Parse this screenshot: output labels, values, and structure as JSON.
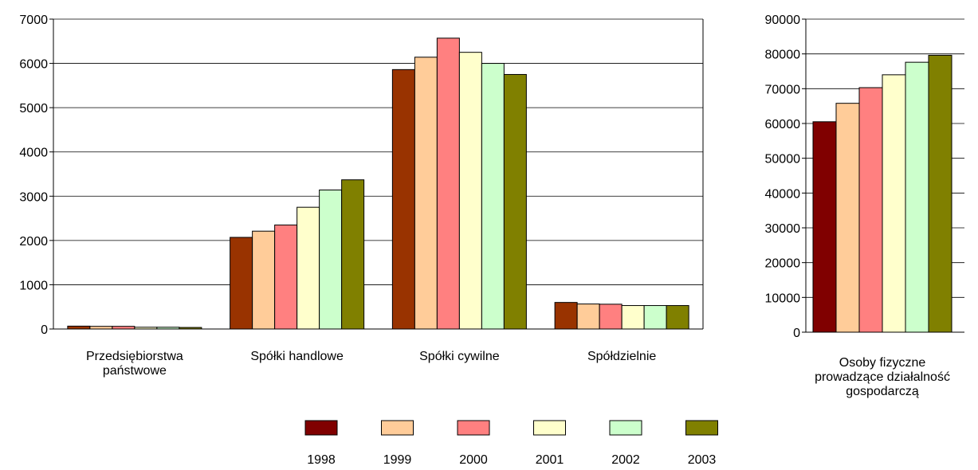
{
  "legend": {
    "placement": "bottom",
    "items": [
      {
        "label": "1998",
        "color": "#800000"
      },
      {
        "label": "1999",
        "color": "#FFCC99"
      },
      {
        "label": "2000",
        "color": "#FF8080"
      },
      {
        "label": "2001",
        "color": "#FFFFCC"
      },
      {
        "label": "2002",
        "color": "#CCFFCC"
      },
      {
        "label": "2003",
        "color": "#808000"
      }
    ]
  },
  "chart_data": [
    {
      "type": "bar",
      "grid": true,
      "ylim": [
        0,
        7000
      ],
      "yticks": [
        "0",
        "1000",
        "2000",
        "3000",
        "4000",
        "5000",
        "6000",
        "7000"
      ],
      "categories": [
        [
          "Przedsiębiorstwa",
          "państwowe"
        ],
        [
          "Spółki handlowe"
        ],
        [
          "Spółki cywilne"
        ],
        [
          "Spółdzielnie"
        ]
      ],
      "series": [
        {
          "name": "1998",
          "color": "#993300",
          "values": [
            65,
            2070,
            5860,
            600
          ]
        },
        {
          "name": "1999",
          "color": "#FFCC99",
          "values": [
            60,
            2210,
            6140,
            565
          ]
        },
        {
          "name": "2000",
          "color": "#FF8080",
          "values": [
            60,
            2350,
            6570,
            560
          ]
        },
        {
          "name": "2001",
          "color": "#FFFFCC",
          "values": [
            40,
            2750,
            6250,
            530
          ]
        },
        {
          "name": "2002",
          "color": "#CCFFCC",
          "values": [
            40,
            3140,
            6000,
            530
          ]
        },
        {
          "name": "2003",
          "color": "#808000",
          "values": [
            35,
            3370,
            5750,
            530
          ]
        }
      ]
    },
    {
      "type": "bar",
      "grid": true,
      "ylim": [
        0,
        90000
      ],
      "yticks": [
        "0",
        "10000",
        "20000",
        "30000",
        "40000",
        "50000",
        "60000",
        "70000",
        "80000",
        "90000"
      ],
      "categories": [
        [
          "Osoby fizyczne",
          "prowadzące działalność",
          "gospodarczą"
        ]
      ],
      "series": [
        {
          "name": "1998",
          "color": "#800000",
          "values": [
            60500
          ]
        },
        {
          "name": "1999",
          "color": "#FFCC99",
          "values": [
            65800
          ]
        },
        {
          "name": "2000",
          "color": "#FF8080",
          "values": [
            70300
          ]
        },
        {
          "name": "2001",
          "color": "#FFFFCC",
          "values": [
            74000
          ]
        },
        {
          "name": "2002",
          "color": "#CCFFCC",
          "values": [
            77600
          ]
        },
        {
          "name": "2003",
          "color": "#808000",
          "values": [
            79600
          ]
        }
      ]
    }
  ]
}
